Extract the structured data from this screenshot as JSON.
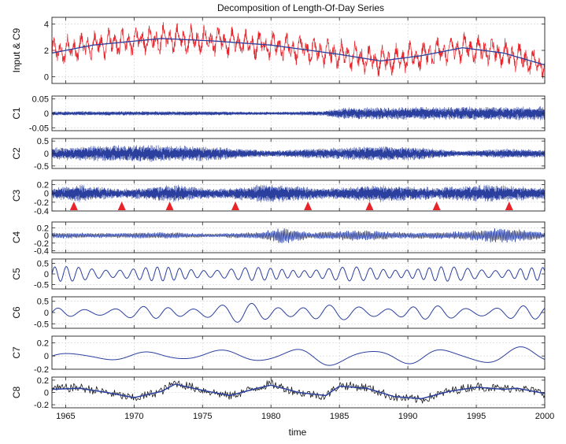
{
  "chart_data": {
    "type": "line",
    "title": "Decomposition of Length-Of-Day Series",
    "xlabel": "time",
    "xlim": [
      1964,
      2000
    ],
    "x_ticks": [
      1965,
      1970,
      1975,
      1980,
      1985,
      1990,
      1995,
      2000
    ],
    "x_tick_labels": [
      "1965",
      "1970",
      "1975",
      "1980",
      "1985",
      "1990",
      "1995",
      "2000"
    ],
    "grid": true,
    "series_colors": {
      "input": "#e8232a",
      "component": "#2a3f9e",
      "black": "#1a1a1a",
      "marker": "#e8232a"
    },
    "panels": [
      {
        "ylabel": "Input & C9",
        "ylim": [
          -0.5,
          4.5
        ],
        "y_ticks": [
          0,
          2,
          4
        ],
        "y_tick_labels": [
          "0",
          "2",
          "4"
        ],
        "kind": "input",
        "trend_points": [
          [
            1964,
            1.8
          ],
          [
            1967,
            2.4
          ],
          [
            1972,
            2.9
          ],
          [
            1976,
            2.7
          ],
          [
            1980,
            2.4
          ],
          [
            1985,
            1.7
          ],
          [
            1988,
            1.2
          ],
          [
            1991,
            1.6
          ],
          [
            1994,
            2.2
          ],
          [
            1997,
            1.8
          ],
          [
            2000,
            0.9
          ]
        ]
      },
      {
        "ylabel": "C1",
        "ylim": [
          -0.06,
          0.06
        ],
        "y_ticks": [
          0.05,
          0,
          -0.05
        ],
        "y_tick_labels": [
          "0.05",
          "0",
          "-0.05"
        ],
        "kind": "hf",
        "amplitude_points": [
          [
            1964,
            0.007
          ],
          [
            1976,
            0.007
          ],
          [
            1980,
            0.005
          ],
          [
            1984,
            0.008
          ],
          [
            1985,
            0.02
          ],
          [
            2000,
            0.025
          ]
        ]
      },
      {
        "ylabel": "C2",
        "ylim": [
          -0.6,
          0.6
        ],
        "y_ticks": [
          0.5,
          0,
          -0.5
        ],
        "y_tick_labels": [
          "0.5",
          "0",
          "-0.5"
        ],
        "kind": "hf",
        "amplitude_points": [
          [
            1964,
            0.25
          ],
          [
            1970,
            0.35
          ],
          [
            1975,
            0.3
          ],
          [
            1980,
            0.12
          ],
          [
            1983,
            0.2
          ],
          [
            1988,
            0.3
          ],
          [
            1991,
            0.25
          ],
          [
            1994,
            0.1
          ],
          [
            1997,
            0.2
          ],
          [
            2000,
            0.15
          ]
        ]
      },
      {
        "ylabel": "C3",
        "ylim": [
          -0.4,
          0.3
        ],
        "y_ticks": [
          0.2,
          0,
          -0.2,
          -0.4
        ],
        "y_tick_labels": [
          "0.2",
          "0",
          "-0.2",
          "-0.4"
        ],
        "kind": "hf",
        "amplitude_points": [
          [
            1964,
            0.12
          ],
          [
            1966,
            0.2
          ],
          [
            1969,
            0.1
          ],
          [
            1973,
            0.2
          ],
          [
            1976,
            0.1
          ],
          [
            1980,
            0.22
          ],
          [
            1984,
            0.12
          ],
          [
            1988,
            0.2
          ],
          [
            1992,
            0.14
          ],
          [
            1996,
            0.2
          ],
          [
            2000,
            0.14
          ]
        ],
        "markers_x": [
          1965.6,
          1969.1,
          1972.6,
          1977.4,
          1982.7,
          1987.2,
          1992.1,
          1997.4
        ]
      },
      {
        "ylabel": "C4",
        "ylim": [
          -0.45,
          0.35
        ],
        "y_ticks": [
          0.2,
          0,
          -0.2,
          -0.4
        ],
        "y_tick_labels": [
          "0.2",
          "0",
          "-0.2",
          "-0.4"
        ],
        "kind": "mf",
        "amplitude_points": [
          [
            1964,
            0.08
          ],
          [
            1968,
            0.06
          ],
          [
            1972,
            0.08
          ],
          [
            1976,
            0.05
          ],
          [
            1979,
            0.08
          ],
          [
            1981,
            0.22
          ],
          [
            1983,
            0.08
          ],
          [
            1986,
            0.14
          ],
          [
            1990,
            0.08
          ],
          [
            1994,
            0.1
          ],
          [
            1997,
            0.22
          ],
          [
            2000,
            0.08
          ]
        ]
      },
      {
        "ylabel": "C5",
        "ylim": [
          -0.7,
          0.7
        ],
        "y_ticks": [
          0.5,
          0,
          -0.5
        ],
        "y_tick_labels": [
          "0.5",
          "0",
          "-0.5"
        ],
        "kind": "wave",
        "period_years": 0.92,
        "amplitude_points": [
          [
            1964,
            0.35
          ],
          [
            1980,
            0.3
          ],
          [
            1990,
            0.35
          ],
          [
            2000,
            0.3
          ]
        ]
      },
      {
        "ylabel": "C6",
        "ylim": [
          -0.7,
          0.7
        ],
        "y_ticks": [
          0.5,
          0,
          -0.5
        ],
        "y_tick_labels": [
          "0.5",
          "0",
          "-0.5"
        ],
        "kind": "wave",
        "period_years": 2.0,
        "amplitude_points": [
          [
            1964,
            0.2
          ],
          [
            1974,
            0.3
          ],
          [
            1978,
            0.45
          ],
          [
            1982,
            0.35
          ],
          [
            1990,
            0.3
          ],
          [
            2000,
            0.3
          ]
        ]
      },
      {
        "ylabel": "C7",
        "ylim": [
          -0.2,
          0.3
        ],
        "y_ticks": [
          0.2,
          0,
          -0.2
        ],
        "y_tick_labels": [
          "0.2",
          "0",
          "-0.2"
        ],
        "kind": "wave",
        "period_years": 5.5,
        "amplitude_points": [
          [
            1964,
            0.06
          ],
          [
            1975,
            0.08
          ],
          [
            1984,
            0.15
          ],
          [
            1990,
            0.12
          ],
          [
            2000,
            0.15
          ]
        ]
      },
      {
        "ylabel": "C8",
        "ylim": [
          -0.25,
          0.25
        ],
        "y_ticks": [
          0.2,
          0,
          -0.2
        ],
        "y_tick_labels": [
          "0.2",
          "0",
          "-0.2"
        ],
        "kind": "c8",
        "smooth_points": [
          [
            1964,
            0.06
          ],
          [
            1966,
            0.08
          ],
          [
            1968,
            0.0
          ],
          [
            1970,
            -0.1
          ],
          [
            1972,
            0.02
          ],
          [
            1973,
            0.16
          ],
          [
            1975,
            0.04
          ],
          [
            1977,
            -0.06
          ],
          [
            1979,
            0.08
          ],
          [
            1980,
            0.14
          ],
          [
            1982,
            0.0
          ],
          [
            1984,
            -0.06
          ],
          [
            1985,
            0.12
          ],
          [
            1987,
            0.08
          ],
          [
            1989,
            -0.08
          ],
          [
            1991,
            -0.12
          ],
          [
            1993,
            0.02
          ],
          [
            1995,
            0.1
          ],
          [
            1997,
            0.06
          ],
          [
            1998,
            0.08
          ],
          [
            2000,
            -0.02
          ]
        ]
      }
    ]
  }
}
